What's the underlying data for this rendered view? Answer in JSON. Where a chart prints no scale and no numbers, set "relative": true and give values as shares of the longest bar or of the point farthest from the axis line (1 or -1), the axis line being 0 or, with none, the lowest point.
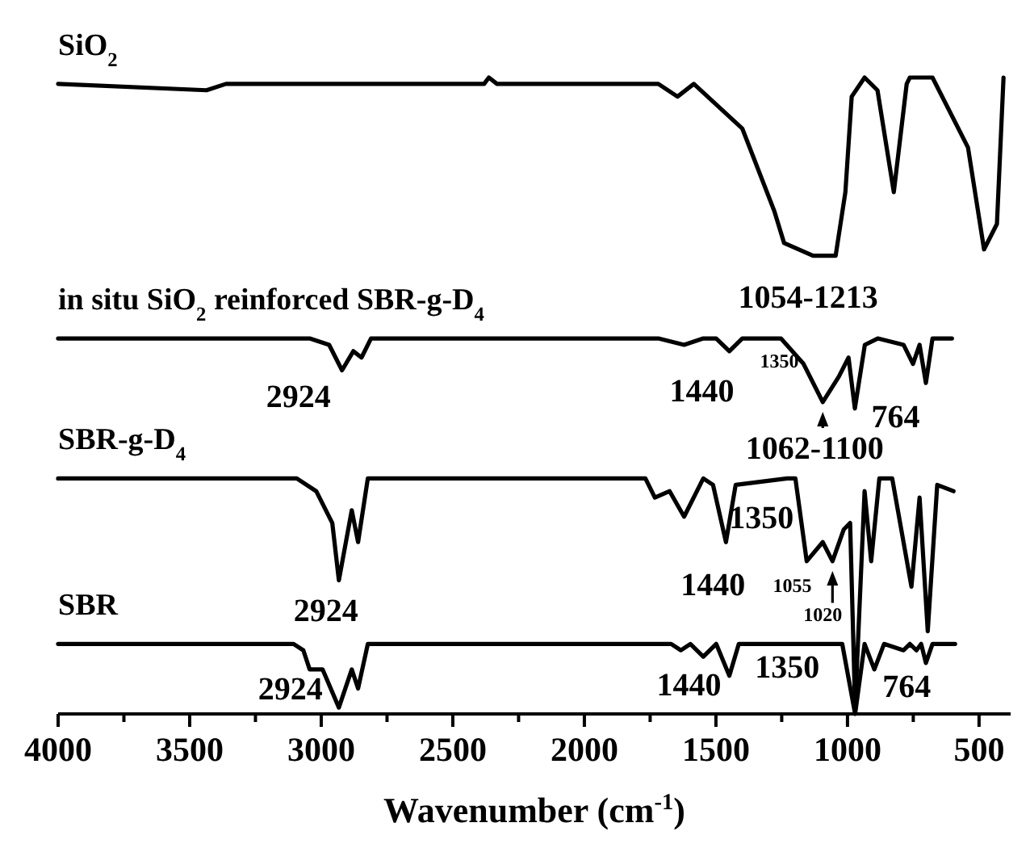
{
  "chart_data": {
    "type": "line",
    "relative": true,
    "xlabel": "Wavenumber (cm$^{-1}$)",
    "xlim": [
      4000,
      380
    ],
    "xticks": [
      4000,
      {
        "value": 3750,
        "label": null
      },
      3500,
      {
        "value": 3250,
        "label": null
      },
      3000,
      {
        "value": 2750,
        "label": null
      },
      2500,
      {
        "value": 2250,
        "label": null
      },
      2000,
      {
        "value": 1750,
        "label": null
      },
      1500,
      {
        "value": 1250,
        "label": null
      },
      1000,
      {
        "value": 750,
        "label": null
      },
      500
    ],
    "grid": false,
    "marker": "none",
    "line_style": "solid",
    "series": [
      {
        "name": "SiO$_{2}$",
        "color": "#000000",
        "x": [
          4000,
          3436,
          3362,
          2381,
          2363,
          2332,
          1891,
          1719,
          1646,
          1584,
          1400,
          1278,
          1241,
          1131,
          1045,
          1008,
          984,
          935,
          886,
          824,
          775,
          763,
          677,
          542,
          481,
          432,
          407
        ],
        "values": [
          0.99,
          0.98,
          0.99,
          0.99,
          1.0,
          0.99,
          0.99,
          0.99,
          0.97,
          0.99,
          0.92,
          0.79,
          0.74,
          0.72,
          0.72,
          0.82,
          0.97,
          1.0,
          0.98,
          0.82,
          0.99,
          1.0,
          1.0,
          0.89,
          0.73,
          0.77,
          1.0
        ]
      },
      {
        "name": "in situ SiO$_{2}$ reinforced SBR-g-D$_{4}$",
        "color": "#000000",
        "x": [
          4000,
          3044,
          2970,
          2921,
          2878,
          2847,
          2811,
          1719,
          1621,
          1548,
          1499,
          1449,
          1400,
          1253,
          1167,
          1094,
          1033,
          996,
          972,
          934,
          885,
          787,
          751,
          726,
          702,
          677,
          603
        ],
        "values": [
          0.59,
          0.59,
          0.58,
          0.54,
          0.57,
          0.56,
          0.59,
          0.59,
          0.58,
          0.59,
          0.59,
          0.57,
          0.59,
          0.59,
          0.55,
          0.49,
          0.53,
          0.56,
          0.48,
          0.58,
          0.59,
          0.58,
          0.55,
          0.58,
          0.52,
          0.59,
          0.59
        ]
      },
      {
        "name": "SBR-g-D$_{4}$",
        "color": "#000000",
        "x": [
          4000,
          3093,
          3019,
          2958,
          2933,
          2884,
          2860,
          2823,
          1768,
          1732,
          1676,
          1621,
          1548,
          1511,
          1462,
          1425,
          1229,
          1198,
          1155,
          1094,
          1057,
          1014,
          990,
          971,
          935,
          910,
          879,
          830,
          757,
          726,
          695,
          659,
          597
        ],
        "values": [
          0.37,
          0.37,
          0.35,
          0.3,
          0.21,
          0.32,
          0.27,
          0.37,
          0.37,
          0.34,
          0.35,
          0.31,
          0.37,
          0.36,
          0.27,
          0.36,
          0.37,
          0.37,
          0.24,
          0.27,
          0.24,
          0.29,
          0.3,
          0.01,
          0.35,
          0.24,
          0.37,
          0.37,
          0.2,
          0.34,
          0.13,
          0.36,
          0.35
        ]
      },
      {
        "name": "SBR",
        "color": "#000000",
        "x": [
          4000,
          3105,
          3068,
          3044,
          2995,
          2933,
          2884,
          2860,
          2823,
          2357,
          1670,
          1633,
          1597,
          1548,
          1499,
          1449,
          1413,
          1020,
          971,
          935,
          898,
          861,
          787,
          763,
          738,
          720,
          702,
          677,
          665,
          591
        ],
        "values": [
          0.11,
          0.11,
          0.1,
          0.07,
          0.07,
          0.01,
          0.07,
          0.04,
          0.11,
          0.11,
          0.11,
          0.1,
          0.11,
          0.09,
          0.11,
          0.06,
          0.11,
          0.11,
          0.0,
          0.11,
          0.07,
          0.11,
          0.1,
          0.11,
          0.1,
          0.11,
          0.08,
          0.11,
          0.11,
          0.11
        ]
      }
    ],
    "annotations": [
      {
        "text": "1054-1213",
        "x": 1131,
        "y": 0.72
      },
      {
        "text": "2924",
        "x": 2921,
        "y": 0.54
      },
      {
        "text": "1440",
        "x": 1449,
        "y": 0.57
      },
      {
        "text": "1350",
        "x": 1400,
        "y": 0.59
      },
      {
        "text": "1062-1100",
        "x": 1094,
        "y": 0.49
      },
      {
        "text": "764",
        "x": 885,
        "y": 0.59
      },
      {
        "text": "2924",
        "x": 2933,
        "y": 0.21
      },
      {
        "text": "1440",
        "x": 1462,
        "y": 0.27
      },
      {
        "text": "1350",
        "x": 1425,
        "y": 0.36
      },
      {
        "text": "1055",
        "x": 1155,
        "y": 0.24
      },
      {
        "text": "1020",
        "x": 1057,
        "y": 0.24
      },
      {
        "text": "2924",
        "x": 2933,
        "y": 0.01
      },
      {
        "text": "1440",
        "x": 1449,
        "y": 0.06
      },
      {
        "text": "1350",
        "x": 1413,
        "y": 0.11
      },
      {
        "text": "764",
        "x": 898,
        "y": 0.07
      }
    ]
  }
}
